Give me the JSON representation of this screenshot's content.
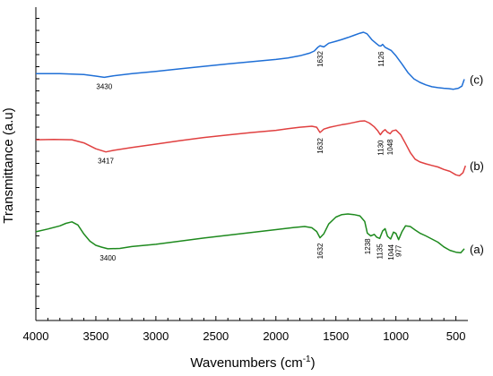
{
  "chart_data": {
    "type": "line",
    "xlabel_main": "Wavenumbers (cm",
    "xlabel_sup": "-1",
    "xlabel_end": ")",
    "ylabel": "Transmittance (a.u)",
    "xlim": [
      4000,
      400
    ],
    "x_reversed": true,
    "x_ticks": [
      4000,
      3500,
      3000,
      2500,
      2000,
      1500,
      1000,
      500
    ],
    "x_tick_labels": [
      "4000",
      "3500",
      "3000",
      "2500",
      "2000",
      "1500",
      "1000",
      "500"
    ],
    "y_ticks_labeled": false,
    "ylim": [
      0,
      1
    ],
    "grid": false,
    "series": [
      {
        "name": "(c)",
        "color": "#1f6fd6",
        "x": [
          4000,
          3800,
          3600,
          3500,
          3430,
          3350,
          3200,
          3000,
          2800,
          2600,
          2400,
          2200,
          2000,
          1900,
          1800,
          1720,
          1680,
          1650,
          1632,
          1600,
          1560,
          1500,
          1450,
          1400,
          1350,
          1300,
          1270,
          1240,
          1200,
          1160,
          1140,
          1126,
          1110,
          1090,
          1060,
          1040,
          1000,
          950,
          900,
          850,
          800,
          750,
          700,
          650,
          600,
          560,
          520,
          480,
          450,
          430
        ],
        "y": [
          0.788,
          0.788,
          0.785,
          0.78,
          0.776,
          0.781,
          0.788,
          0.795,
          0.803,
          0.811,
          0.819,
          0.826,
          0.833,
          0.838,
          0.845,
          0.853,
          0.86,
          0.872,
          0.877,
          0.873,
          0.885,
          0.891,
          0.897,
          0.903,
          0.91,
          0.917,
          0.92,
          0.915,
          0.896,
          0.883,
          0.877,
          0.876,
          0.881,
          0.872,
          0.866,
          0.862,
          0.845,
          0.819,
          0.791,
          0.771,
          0.76,
          0.752,
          0.746,
          0.743,
          0.741,
          0.74,
          0.738,
          0.741,
          0.748,
          0.77
        ],
        "annotations": [
          {
            "x": 3430,
            "label": "3430"
          },
          {
            "x": 1632,
            "label": "1632"
          },
          {
            "x": 1126,
            "label": "1126"
          }
        ]
      },
      {
        "name": "(b)",
        "color": "#e04040",
        "x": [
          4000,
          3850,
          3700,
          3600,
          3500,
          3417,
          3350,
          3200,
          3000,
          2800,
          2600,
          2400,
          2200,
          2000,
          1900,
          1800,
          1700,
          1660,
          1632,
          1600,
          1550,
          1500,
          1450,
          1400,
          1350,
          1300,
          1260,
          1220,
          1180,
          1150,
          1130,
          1110,
          1090,
          1070,
          1048,
          1030,
          1000,
          960,
          920,
          880,
          840,
          800,
          750,
          700,
          650,
          600,
          550,
          500,
          470,
          440,
          420
        ],
        "y": [
          0.577,
          0.578,
          0.577,
          0.567,
          0.548,
          0.538,
          0.543,
          0.552,
          0.563,
          0.574,
          0.584,
          0.592,
          0.6,
          0.607,
          0.612,
          0.617,
          0.62,
          0.617,
          0.6,
          0.611,
          0.617,
          0.621,
          0.625,
          0.628,
          0.632,
          0.636,
          0.637,
          0.63,
          0.618,
          0.605,
          0.593,
          0.603,
          0.609,
          0.601,
          0.596,
          0.605,
          0.608,
          0.593,
          0.565,
          0.536,
          0.515,
          0.506,
          0.5,
          0.495,
          0.49,
          0.482,
          0.476,
          0.465,
          0.462,
          0.472,
          0.494
        ],
        "annotations": [
          {
            "x": 3417,
            "label": "3417"
          },
          {
            "x": 1632,
            "label": "1632"
          },
          {
            "x": 1130,
            "label": "1130"
          },
          {
            "x": 1048,
            "label": "1048"
          }
        ]
      },
      {
        "name": "(a)",
        "color": "#1e8a1e",
        "x": [
          4000,
          3900,
          3800,
          3750,
          3700,
          3650,
          3600,
          3550,
          3500,
          3450,
          3400,
          3300,
          3200,
          3000,
          2800,
          2600,
          2400,
          2200,
          2000,
          1850,
          1760,
          1700,
          1660,
          1632,
          1600,
          1560,
          1500,
          1450,
          1400,
          1350,
          1300,
          1260,
          1238,
          1210,
          1180,
          1160,
          1135,
          1110,
          1090,
          1070,
          1044,
          1020,
          1000,
          977,
          950,
          920,
          880,
          840,
          800,
          750,
          700,
          650,
          600,
          550,
          500,
          460,
          430
        ],
        "y": [
          0.283,
          0.292,
          0.302,
          0.31,
          0.315,
          0.305,
          0.276,
          0.253,
          0.24,
          0.234,
          0.229,
          0.23,
          0.236,
          0.243,
          0.253,
          0.263,
          0.272,
          0.281,
          0.29,
          0.297,
          0.3,
          0.296,
          0.284,
          0.264,
          0.277,
          0.308,
          0.33,
          0.338,
          0.34,
          0.338,
          0.334,
          0.316,
          0.279,
          0.27,
          0.275,
          0.266,
          0.262,
          0.286,
          0.293,
          0.269,
          0.26,
          0.282,
          0.278,
          0.258,
          0.283,
          0.302,
          0.3,
          0.289,
          0.279,
          0.27,
          0.26,
          0.25,
          0.235,
          0.224,
          0.218,
          0.216,
          0.229
        ],
        "annotations": [
          {
            "x": 3400,
            "label": "3400"
          },
          {
            "x": 1632,
            "label": "1632"
          },
          {
            "x": 1238,
            "label": "1238"
          },
          {
            "x": 1135,
            "label": "1135"
          },
          {
            "x": 1044,
            "label": "1044"
          },
          {
            "x": 977,
            "label": "977"
          }
        ]
      }
    ]
  }
}
